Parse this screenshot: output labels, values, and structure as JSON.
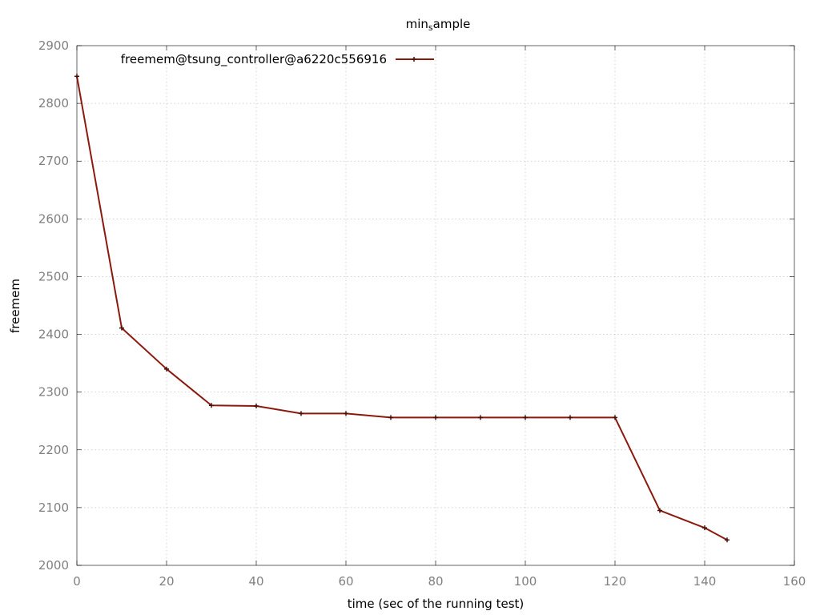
{
  "chart_data": {
    "type": "line",
    "title": "min_sample",
    "title_main": "min",
    "title_sub": "s",
    "title_rest": "ample",
    "xlabel": "time (sec of the running test)",
    "ylabel": "freemem",
    "xlim": [
      0,
      160
    ],
    "ylim": [
      2000,
      2900
    ],
    "xticks": [
      0,
      20,
      40,
      60,
      80,
      100,
      120,
      140,
      160
    ],
    "yticks": [
      2000,
      2100,
      2200,
      2300,
      2400,
      2500,
      2600,
      2700,
      2800,
      2900
    ],
    "grid": true,
    "legend_position": "top-left",
    "line_color": "#8b1a0e",
    "series": [
      {
        "name": "freemem@tsung_controller@a6220c556916",
        "x": [
          0,
          10,
          20,
          30,
          40,
          50,
          60,
          70,
          80,
          90,
          100,
          110,
          120,
          130,
          140,
          145
        ],
        "y": [
          2847,
          2411,
          2340,
          2277,
          2276,
          2263,
          2263,
          2256,
          2256,
          2256,
          2256,
          2256,
          2256,
          2095,
          2065,
          2044
        ]
      }
    ]
  }
}
